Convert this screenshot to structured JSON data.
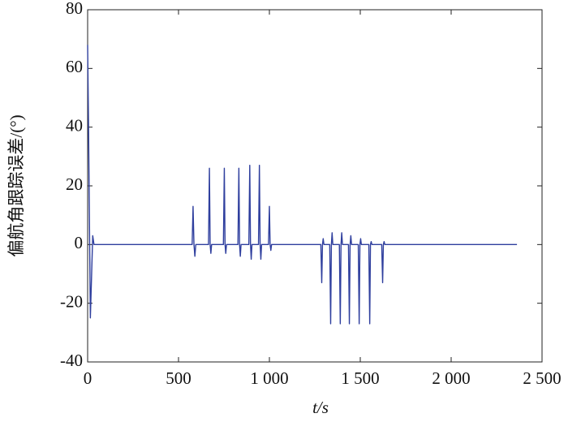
{
  "chart_data": {
    "type": "line",
    "xlabel": "t/s",
    "ylabel": "偏航角跟踪误差/(°)",
    "xlim": [
      0,
      2500
    ],
    "ylim": [
      -40,
      80
    ],
    "xticks": [
      0,
      500,
      {
        "value": 1000,
        "label": "1 000"
      },
      {
        "value": 1500,
        "label": "1 500"
      },
      {
        "value": 2000,
        "label": "2 000"
      },
      {
        "value": 2500,
        "label": "2 500"
      }
    ],
    "yticks": [
      -40,
      -20,
      0,
      20,
      40,
      60,
      80
    ],
    "series": [
      {
        "color": "#2f3f9e",
        "x": [
          0,
          5,
          15,
          22,
          28,
          35,
          575,
          580,
          585,
          590,
          595,
          665,
          670,
          674,
          678,
          682,
          747,
          752,
          756,
          760,
          764,
          827,
          832,
          836,
          840,
          844,
          887,
          892,
          896,
          900,
          904,
          940,
          945,
          949,
          953,
          957,
          995,
          1000,
          1004,
          1008,
          1012,
          1283,
          1288,
          1292,
          1296,
          1300,
          1332,
          1337,
          1341,
          1345,
          1349,
          1385,
          1390,
          1394,
          1398,
          1402,
          1435,
          1440,
          1444,
          1448,
          1452,
          1489,
          1494,
          1498,
          1502,
          1506,
          1547,
          1552,
          1556,
          1560,
          1564,
          1618,
          1623,
          1627,
          1631,
          1635,
          2362
        ],
        "values": [
          68,
          40,
          -25,
          -10,
          3,
          0,
          0,
          13,
          0,
          -4,
          0,
          0,
          26,
          0,
          -3,
          0,
          0,
          26,
          0,
          -3,
          0,
          0,
          26,
          0,
          -4,
          0,
          0,
          27,
          0,
          -5,
          0,
          0,
          27,
          0,
          -5,
          0,
          0,
          13,
          0,
          -2,
          0,
          0,
          -13,
          0,
          2,
          0,
          0,
          -27,
          0,
          4,
          0,
          0,
          -27,
          0,
          4,
          0,
          0,
          -27,
          0,
          3,
          0,
          0,
          -27,
          0,
          2,
          0,
          0,
          -27,
          0,
          1,
          0,
          0,
          -13,
          0,
          1,
          0,
          0
        ]
      }
    ]
  }
}
